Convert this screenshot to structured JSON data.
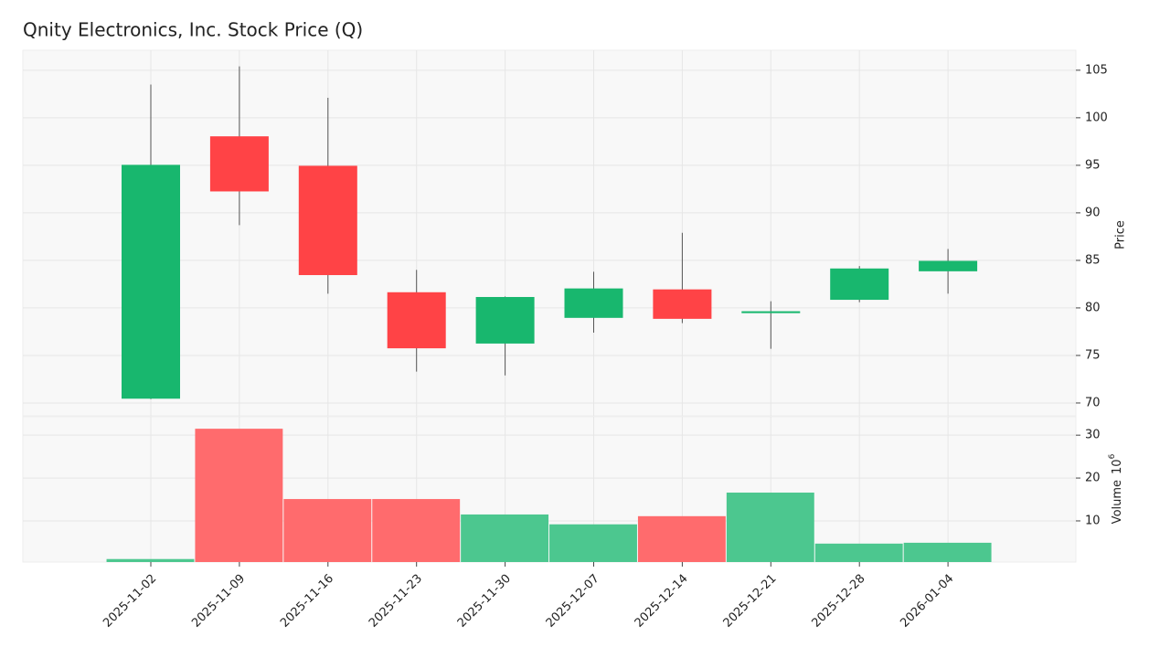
{
  "chart_data": {
    "type": "candlestick",
    "title": "Qnity Electronics, Inc. Stock Price (Q)",
    "y_label": "Price",
    "volume_label": "Volume",
    "volume_scale_base": "10",
    "volume_scale_exponent": "6",
    "categories": [
      "2025-11-02",
      "2025-11-09",
      "2025-11-16",
      "2025-11-23",
      "2025-11-30",
      "2025-12-07",
      "2025-12-14",
      "2025-12-21",
      "2025-12-28",
      "2026-01-04"
    ],
    "open": [
      70.5,
      98.0,
      94.9,
      81.6,
      76.3,
      79.0,
      81.9,
      79.5,
      80.9,
      83.9
    ],
    "high": [
      103.5,
      105.4,
      102.1,
      84.0,
      81.2,
      83.8,
      87.9,
      80.7,
      84.4,
      86.2
    ],
    "low": [
      70.4,
      88.7,
      81.5,
      73.3,
      72.9,
      77.4,
      78.4,
      75.7,
      80.6,
      81.5
    ],
    "close": [
      95.0,
      92.3,
      83.5,
      75.8,
      81.1,
      82.0,
      78.9,
      79.6,
      84.1,
      84.9
    ],
    "volume": [
      1.1,
      31.5,
      15.1,
      15.1,
      11.5,
      9.2,
      11.1,
      16.6,
      4.7,
      4.9
    ],
    "up_color": "#18b76e",
    "down_color": "#ff4346",
    "volume_up_color": "#4cc78f",
    "volume_down_color": "#ff6b6d",
    "ylim": [
      68.65,
      107.1
    ],
    "yticks": [
      70,
      75,
      80,
      85,
      90,
      95,
      100,
      105
    ],
    "volume_ylim": [
      0.4,
      34.3
    ],
    "volume_yticks": [
      10,
      20,
      30
    ],
    "grid": true
  }
}
